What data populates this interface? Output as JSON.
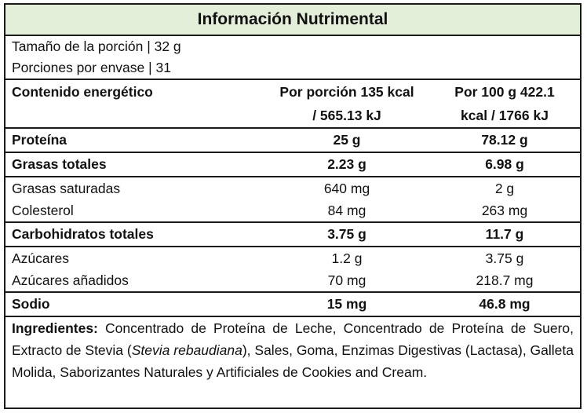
{
  "title": "Información Nutrimental",
  "serving_size": "Tamaño de la porción | 32 g",
  "servings_per_container": "Porciones por envase | 31",
  "energy": {
    "label": "Contenido energético",
    "per_serving_line1": "Por porción 135 kcal",
    "per_serving_line2": "/ 565.13 kJ",
    "per_100g_line1": "Por 100 g 422.1",
    "per_100g_line2": "kcal / 1766 kJ"
  },
  "rows": [
    {
      "label": "Proteína",
      "per_serving": "25 g",
      "per_100g": "78.12 g"
    },
    {
      "label": "Grasas totales",
      "per_serving": "2.23 g",
      "per_100g": "6.98 g"
    },
    {
      "label": "Grasas saturadas",
      "per_serving": "640 mg",
      "per_100g": "2 g"
    },
    {
      "label": "Colesterol",
      "per_serving": "84 mg",
      "per_100g": "263 mg"
    },
    {
      "label": "Carbohidratos totales",
      "per_serving": "3.75 g",
      "per_100g": "11.7 g"
    },
    {
      "label": "Azúcares",
      "per_serving": "1.2 g",
      "per_100g": "3.75 g"
    },
    {
      "label": "Azúcares añadidos",
      "per_serving": "70 mg",
      "per_100g": "218.7 mg"
    },
    {
      "label": "Sodio",
      "per_serving": "15 mg",
      "per_100g": "46.8 mg"
    }
  ],
  "ingredients": {
    "label": "Ingredientes:",
    "text_before": " Concentrado de Proteína de Leche, Concentrado de Proteína de Suero, Extracto de Stevia (",
    "italic": "Stevia rebaudiana",
    "text_after": "), Sales, Goma, Enzimas Digestivas (Lactasa), Galleta Molida, Saborizantes Naturales y Artificiales de Cookies and Cream."
  }
}
